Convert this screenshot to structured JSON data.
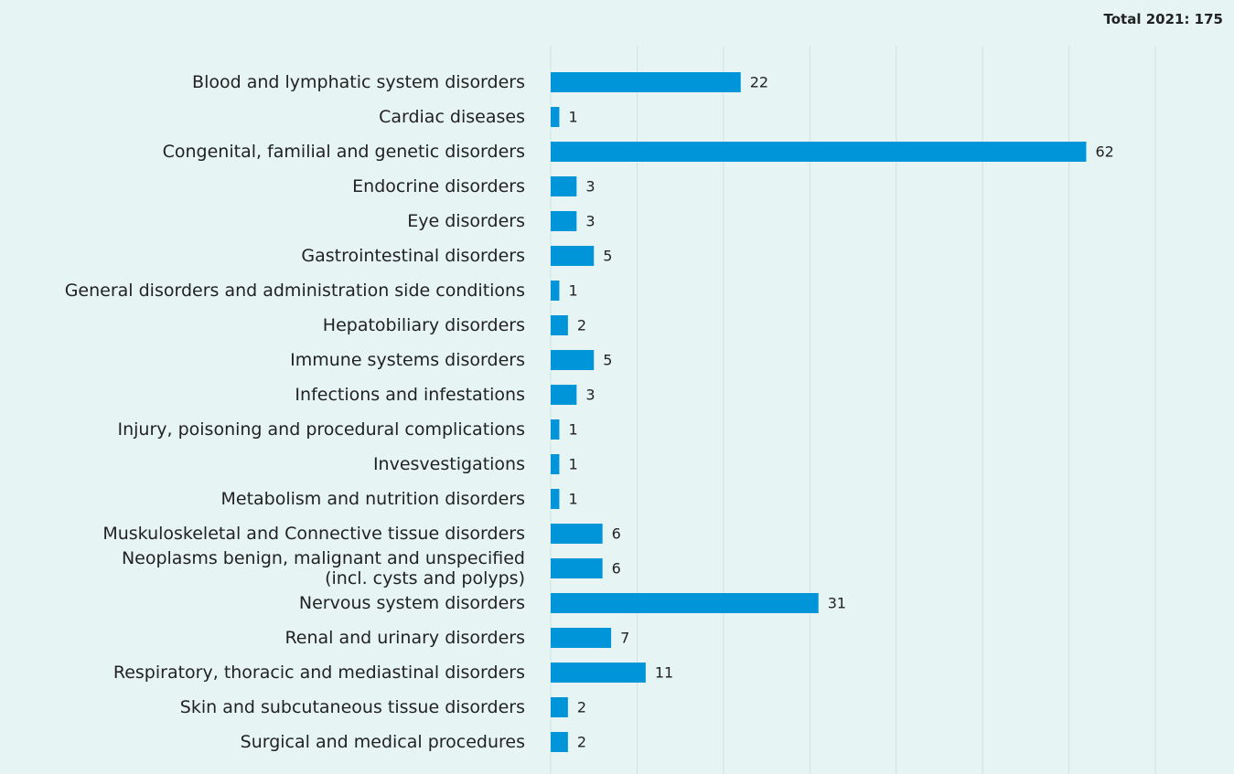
{
  "chart_data": {
    "type": "barh",
    "title": "Total 2021: 175",
    "categories": [
      "Blood and lymphatic system disorders",
      "Cardiac diseases",
      "Congenital, familial and genetic disorders",
      "Endocrine disorders",
      "Eye disorders",
      "Gastrointestinal disorders",
      "General disorders and administration side conditions",
      "Hepatobiliary disorders",
      "Immune systems disorders",
      "Infections and infestations",
      "Injury, poisoning and procedural complications",
      "Invesvestigations",
      "Metabolism and nutrition disorders",
      "Muskuloskeletal and Connective tissue disorders",
      "Neoplasms benign, malignant and unspecified\n(incl. cysts and polyps)",
      "Nervous system disorders",
      "Renal and urinary disorders",
      "Respiratory, thoracic and mediastinal disorders",
      "Skin and subcutaneous tissue disorders",
      "Surgical and medical procedures"
    ],
    "values": [
      22,
      1,
      62,
      3,
      3,
      5,
      1,
      2,
      5,
      3,
      1,
      1,
      1,
      6,
      6,
      31,
      7,
      11,
      2,
      2
    ],
    "color": "#0095d9",
    "xlim": [
      0,
      70
    ],
    "xticks": [
      0,
      10,
      20,
      30,
      40,
      50,
      60,
      70
    ],
    "grid": true
  }
}
